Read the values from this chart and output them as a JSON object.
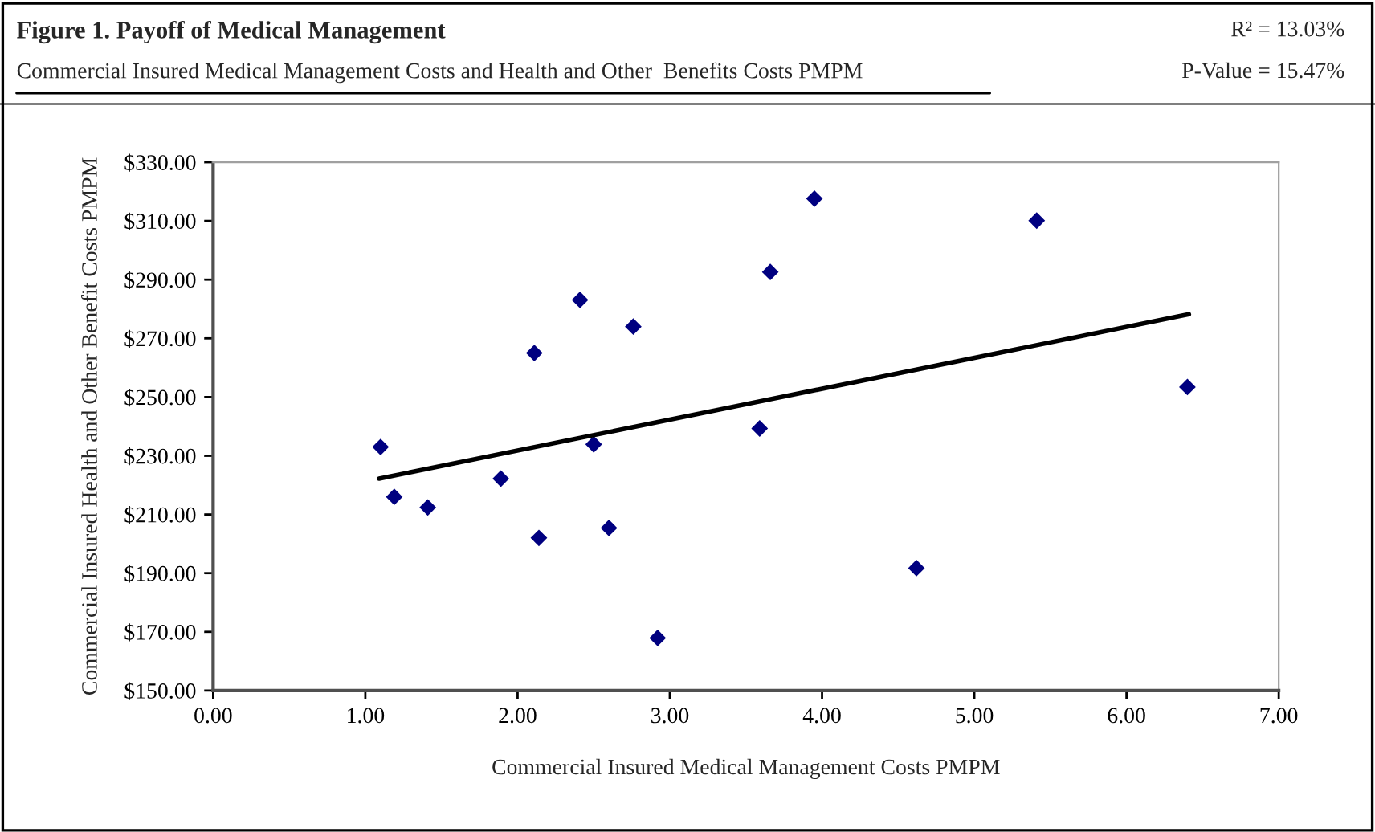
{
  "chart_data": {
    "type": "scatter",
    "title": "Figure 1. Payoff of Medical Management",
    "subtitle": "Commercial Insured Medical Management Costs and Health and Other  Benefits Costs PMPM",
    "xlabel": "Commercial Insured Medical Management Costs PMPM",
    "ylabel": "Commercial Insured Health and Other Benefit Costs PMPM",
    "annotations": [
      "R² = 13.03%",
      "P-Value = 15.47%"
    ],
    "series": [
      {
        "color": "#000080",
        "marker": "diamond",
        "x": [
          1.1,
          1.19,
          1.41,
          1.89,
          2.11,
          2.14,
          2.41,
          2.5,
          2.6,
          2.76,
          2.92,
          3.59,
          3.66,
          3.95,
          4.62,
          5.41,
          6.4
        ],
        "values": [
          233.0,
          216.0,
          212.4,
          222.2,
          265.0,
          202.0,
          283.1,
          233.9,
          205.4,
          274.0,
          167.9,
          239.3,
          292.6,
          317.6,
          191.7,
          310.1,
          253.4
        ]
      },
      {
        "type": "line",
        "color": "#000000",
        "line_style": "solid",
        "x": [
          1.09,
          6.41
        ],
        "values": [
          222.2,
          278.2
        ]
      }
    ],
    "xlim": [
      0,
      7
    ],
    "xticks": [
      {
        "value": 0,
        "label": "0.00"
      },
      {
        "value": 1,
        "label": "1.00"
      },
      {
        "value": 2,
        "label": "2.00"
      },
      {
        "value": 3,
        "label": "3.00"
      },
      {
        "value": 4,
        "label": "4.00"
      },
      {
        "value": 5,
        "label": "5.00"
      },
      {
        "value": 6,
        "label": "6.00"
      },
      {
        "value": 7,
        "label": "7.00"
      }
    ],
    "ylim": [
      150,
      330
    ],
    "yticks": [
      {
        "value": 150,
        "label": "$150.00"
      },
      {
        "value": 170,
        "label": "$170.00"
      },
      {
        "value": 190,
        "label": "$190.00"
      },
      {
        "value": 210,
        "label": "$210.00"
      },
      {
        "value": 230,
        "label": "$230.00"
      },
      {
        "value": 250,
        "label": "$250.00"
      },
      {
        "value": 270,
        "label": "$270.00"
      },
      {
        "value": 290,
        "label": "$290.00"
      },
      {
        "value": 310,
        "label": "$310.00"
      },
      {
        "value": 330,
        "label": "$330.00"
      }
    ],
    "grid": false,
    "legend": false
  }
}
